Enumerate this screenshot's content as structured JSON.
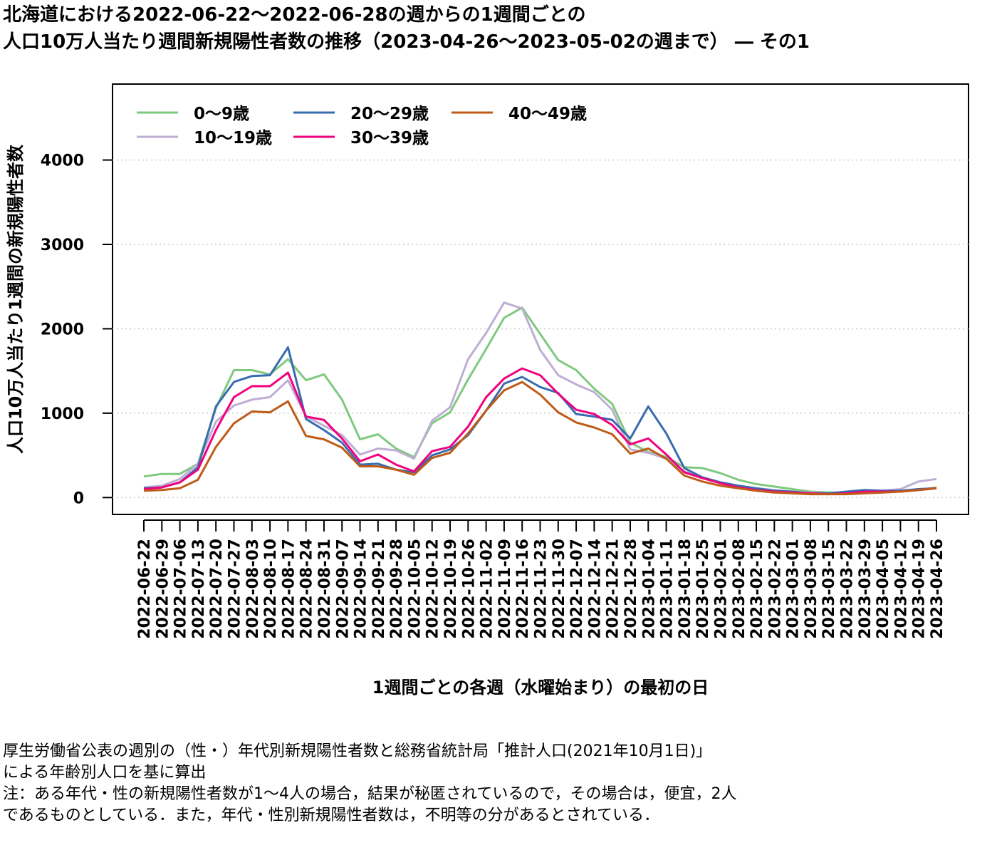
{
  "title": {
    "line1": "北海道における2022-06-22～2022-06-28の週からの1週間ごとの",
    "line2": "人口10万人当たり週間新規陽性者数の推移（2023-04-26～2023-05-02の週まで） ― その1"
  },
  "notes": {
    "line1": "厚生労働省公表の週別の（性・）年代別新規陽性者数と総務省統計局「推計人口(2021年10月1日)」",
    "line2": "による年齢別人口を基に算出",
    "line3": "注：ある年代・性の新規陽性者数が1～4人の場合，結果が秘匿されているので，その場合は，便宜，2人",
    "line4": "であるものとしている．また，年代・性別新規陽性者数は，不明等の分があるとされている．"
  },
  "chart_data": {
    "type": "line",
    "xlabel": "1週間ごとの各週（水曜始まり）の最初の日",
    "ylabel": "人口10万人当たり1週間の新規陽性者数",
    "ylim": [
      -200,
      4900
    ],
    "yticks": [
      0,
      1000,
      2000,
      3000,
      4000
    ],
    "grid": "horizontal dotted",
    "legend_position": "top-left",
    "categories": [
      "2022-06-22",
      "2022-06-29",
      "2022-07-06",
      "2022-07-13",
      "2022-07-20",
      "2022-07-27",
      "2022-08-03",
      "2022-08-10",
      "2022-08-17",
      "2022-08-24",
      "2022-08-31",
      "2022-09-07",
      "2022-09-14",
      "2022-09-21",
      "2022-09-28",
      "2022-10-05",
      "2022-10-12",
      "2022-10-19",
      "2022-10-26",
      "2022-11-02",
      "2022-11-09",
      "2022-11-16",
      "2022-11-23",
      "2022-11-30",
      "2022-12-07",
      "2022-12-14",
      "2022-12-21",
      "2022-12-28",
      "2023-01-04",
      "2023-01-11",
      "2023-01-18",
      "2023-01-25",
      "2023-02-01",
      "2023-02-08",
      "2023-02-15",
      "2023-02-22",
      "2023-03-01",
      "2023-03-08",
      "2023-03-15",
      "2023-03-22",
      "2023-03-29",
      "2023-04-05",
      "2023-04-12",
      "2023-04-19",
      "2023-04-26"
    ],
    "series": [
      {
        "name": "0～9歳",
        "color": "#7fc97f",
        "values": [
          250,
          280,
          280,
          400,
          1060,
          1510,
          1510,
          1460,
          1640,
          1390,
          1460,
          1160,
          690,
          750,
          580,
          480,
          880,
          1010,
          1400,
          1760,
          2130,
          2250,
          1940,
          1630,
          1510,
          1290,
          1110,
          650,
          540,
          480,
          360,
          350,
          290,
          210,
          160,
          130,
          100,
          70,
          60,
          60,
          60,
          70,
          70,
          90,
          120
        ]
      },
      {
        "name": "10～19歳",
        "color": "#beaed4",
        "values": [
          120,
          140,
          220,
          400,
          900,
          1090,
          1160,
          1190,
          1390,
          960,
          850,
          740,
          510,
          580,
          560,
          460,
          910,
          1070,
          1640,
          1950,
          2310,
          2240,
          1750,
          1450,
          1340,
          1250,
          1040,
          570,
          530,
          460,
          310,
          240,
          180,
          140,
          110,
          90,
          70,
          60,
          50,
          50,
          60,
          80,
          100,
          190,
          220
        ]
      },
      {
        "name": "20～29歳",
        "color": "#386cb0",
        "values": [
          110,
          120,
          180,
          360,
          1080,
          1370,
          1440,
          1450,
          1780,
          930,
          800,
          650,
          390,
          400,
          330,
          300,
          500,
          570,
          740,
          1030,
          1350,
          1430,
          1310,
          1240,
          990,
          960,
          920,
          700,
          1080,
          760,
          350,
          240,
          180,
          140,
          110,
          80,
          70,
          50,
          50,
          70,
          90,
          80,
          80,
          100,
          110
        ]
      },
      {
        "name": "30～39歳",
        "color": "#f0027f",
        "values": [
          100,
          120,
          180,
          330,
          800,
          1190,
          1320,
          1320,
          1480,
          960,
          920,
          700,
          430,
          510,
          390,
          310,
          550,
          600,
          840,
          1190,
          1410,
          1530,
          1450,
          1230,
          1040,
          990,
          860,
          630,
          700,
          510,
          300,
          230,
          170,
          120,
          90,
          70,
          60,
          50,
          40,
          50,
          70,
          70,
          70,
          90,
          110
        ]
      },
      {
        "name": "40～49歳",
        "color": "#bf5b17",
        "values": [
          80,
          90,
          110,
          210,
          600,
          880,
          1020,
          1010,
          1140,
          730,
          690,
          590,
          370,
          370,
          330,
          270,
          470,
          530,
          760,
          1030,
          1270,
          1370,
          1220,
          1010,
          890,
          830,
          750,
          520,
          580,
          460,
          260,
          190,
          140,
          110,
          80,
          60,
          50,
          40,
          40,
          40,
          50,
          60,
          70,
          90,
          110
        ]
      }
    ]
  }
}
